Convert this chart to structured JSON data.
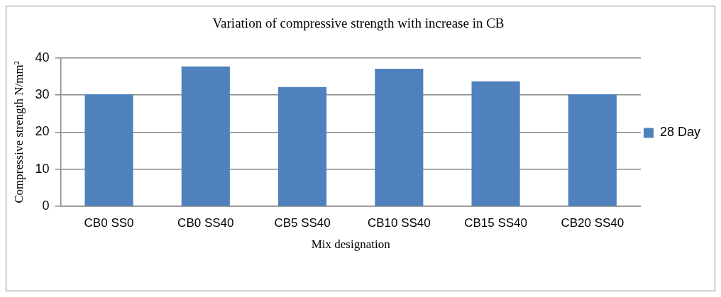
{
  "chart_data": {
    "type": "bar",
    "title": "Variation of compressive strength with increase in CB",
    "xlabel": "Mix designation",
    "ylabel": "Compressive strength N/mm²",
    "categories": [
      "CB0 SS0",
      "CB0 SS40",
      "CB5 SS40",
      "CB10 SS40",
      "CB15 SS40",
      "CB20 SS40"
    ],
    "series": [
      {
        "name": "28 Day",
        "color": "#4f81bd",
        "values": [
          30.2,
          37.7,
          32.2,
          37.1,
          33.7,
          30.2
        ]
      }
    ],
    "ylim": [
      0,
      40
    ],
    "yticks": [
      0,
      10,
      20,
      30,
      40
    ],
    "grid": "y",
    "legend": "right"
  }
}
